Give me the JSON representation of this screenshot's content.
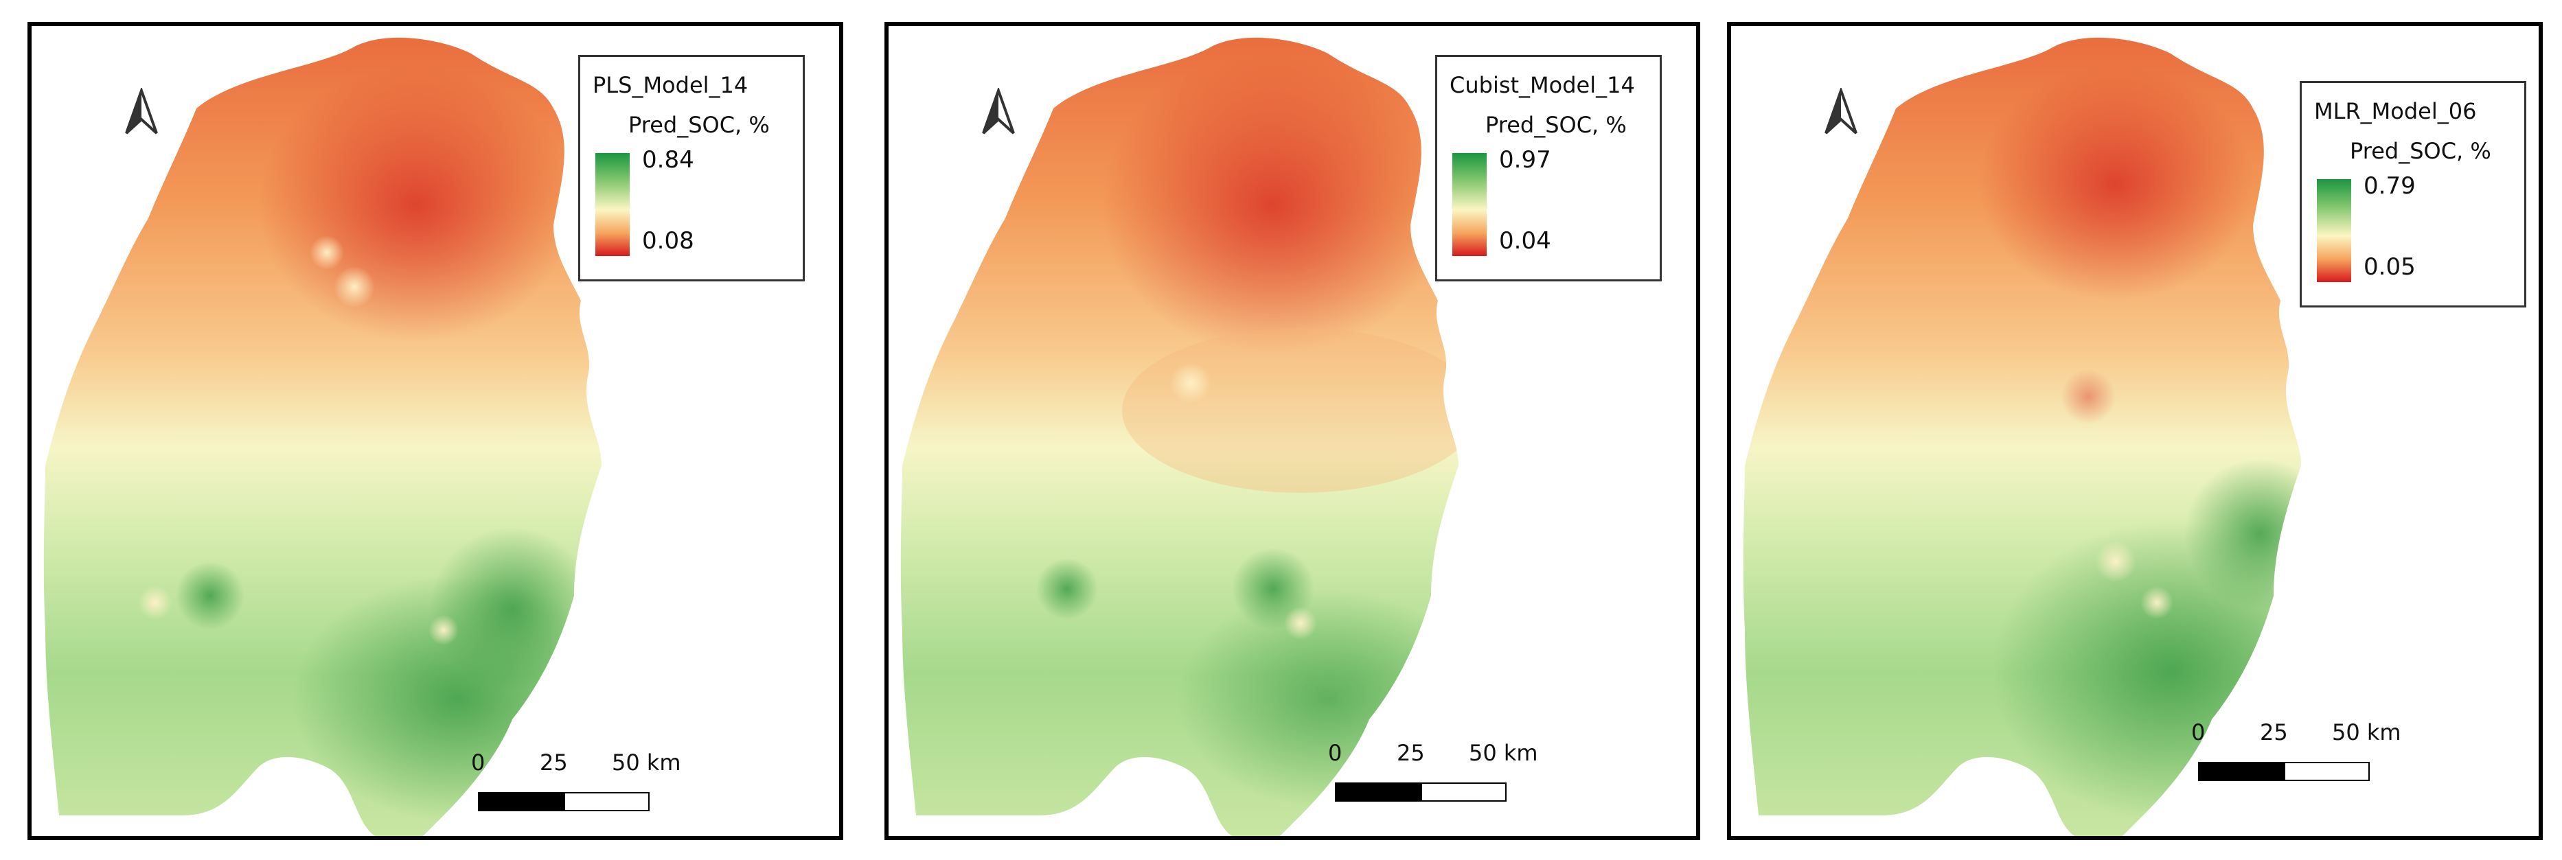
{
  "panels": [
    {
      "legend_title": "PLS_Model_14",
      "legend_subtitle": "Pred_SOC, %",
      "legend_max": "0.84",
      "legend_min": "0.08",
      "scale_labels": [
        "0",
        "25",
        "50 km"
      ]
    },
    {
      "legend_title": "Cubist_Model_14",
      "legend_subtitle": "Pred_SOC, %",
      "legend_max": "0.97",
      "legend_min": "0.04",
      "scale_labels": [
        "0",
        "25",
        "50 km"
      ]
    },
    {
      "legend_title": "MLR_Model_06",
      "legend_subtitle": "Pred_SOC, %",
      "legend_max": "0.79",
      "legend_min": "0.05",
      "scale_labels": [
        "0",
        "25",
        "50 km"
      ]
    }
  ],
  "colors": {
    "high": "#1a9641",
    "mid": "#fbf6c2",
    "low": "#d7191c"
  },
  "icons": [
    "north-arrow-icon"
  ]
}
